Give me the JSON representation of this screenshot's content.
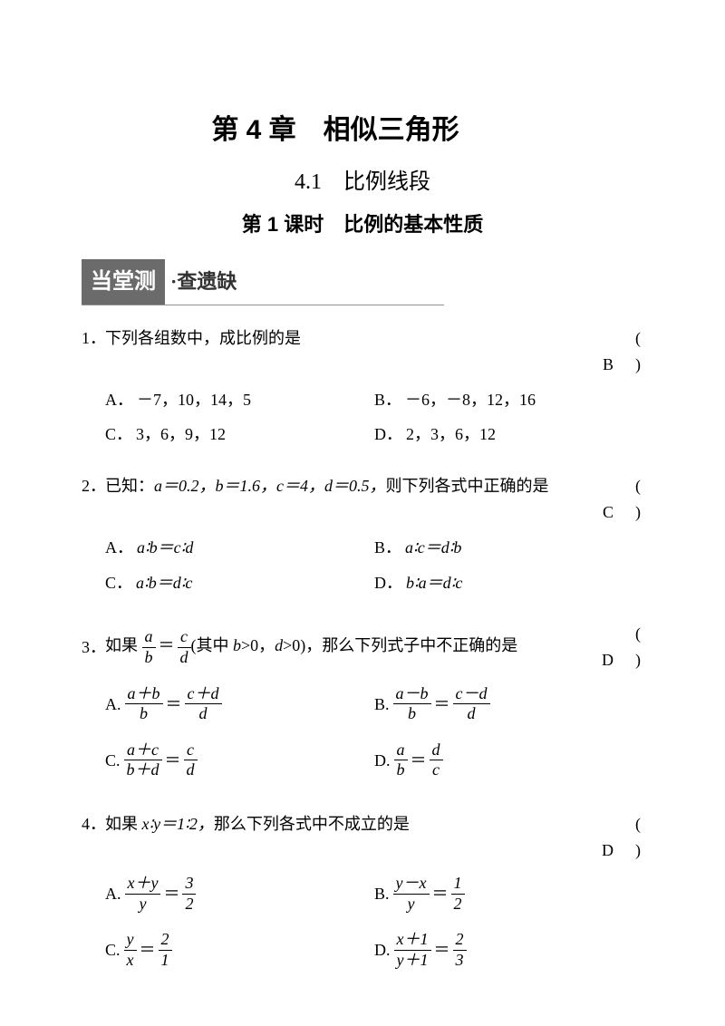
{
  "chapter_title": "第 4 章　相似三角形",
  "section_title": "4.1　比例线段",
  "lesson_title": "第 1 课时　比例的基本性质",
  "banner": {
    "main": "当堂测",
    "sub": "·查遗缺"
  },
  "questions": [
    {
      "num": "1．",
      "text": "下列各组数中，成比例的是",
      "answer": "(　B　)",
      "options": [
        {
          "label": "A．",
          "body": "－7，10，14，5"
        },
        {
          "label": "B．",
          "body": "－6，－8，12，16"
        },
        {
          "label": "C．",
          "body": "3，6，9，12"
        },
        {
          "label": "D．",
          "body": "2，3，6，12"
        }
      ]
    },
    {
      "num": "2．",
      "text_pre": "已知：",
      "text_mid": "a＝0.2，b＝1.6，c＝4，d＝0.5，",
      "text_post": "则下列各式中正确的是",
      "answer": "(　C　)",
      "options": [
        {
          "label": "A．",
          "body": "a∶b＝c∶d"
        },
        {
          "label": "B．",
          "body": "a∶c＝d∶b"
        },
        {
          "label": "C．",
          "body": "a∶b＝d∶c"
        },
        {
          "label": "D．",
          "body": "b∶a＝d∶c"
        }
      ]
    },
    {
      "num": "3．",
      "text_pre": "如果",
      "frac1_num": "a",
      "frac1_den": "b",
      "frac2_num": "c",
      "frac2_den": "d",
      "text_mid": "(其中 ",
      "cond1": "b",
      "cond1_post": ">0，",
      "cond2": "d",
      "cond2_post": ">0)，",
      "text_post": "那么下列式子中不正确的是",
      "answer": "(　D　)",
      "opts": {
        "A": {
          "label": "A.",
          "n1": "a＋b",
          "d1": "b",
          "n2": "c＋d",
          "d2": "d"
        },
        "B": {
          "label": "B.",
          "n1": "a－b",
          "d1": "b",
          "n2": "c－d",
          "d2": "d"
        },
        "C": {
          "label": "C.",
          "n1": "a＋c",
          "d1": "b＋d",
          "n2": "c",
          "d2": "d"
        },
        "D": {
          "label": "D.",
          "n1": "a",
          "d1": "b",
          "n2": "d",
          "d2": "c"
        }
      }
    },
    {
      "num": "4．",
      "text_pre": "如果 ",
      "ratio": "x∶y＝1∶2，",
      "text_post": "那么下列各式中不成立的是",
      "answer": "(　D　)",
      "opts": {
        "A": {
          "label": "A.",
          "n1": "x＋y",
          "d1": "y",
          "n2": "3",
          "d2": "2"
        },
        "B": {
          "label": "B.",
          "n1": "y－x",
          "d1": "y",
          "n2": "1",
          "d2": "2"
        },
        "C": {
          "label": "C.",
          "n1": "y",
          "d1": "x",
          "n2": "2",
          "d2": "1"
        },
        "D": {
          "label": "D.",
          "n1": "x＋1",
          "d1": "y＋1",
          "n2": "2",
          "d2": "3"
        }
      }
    }
  ]
}
